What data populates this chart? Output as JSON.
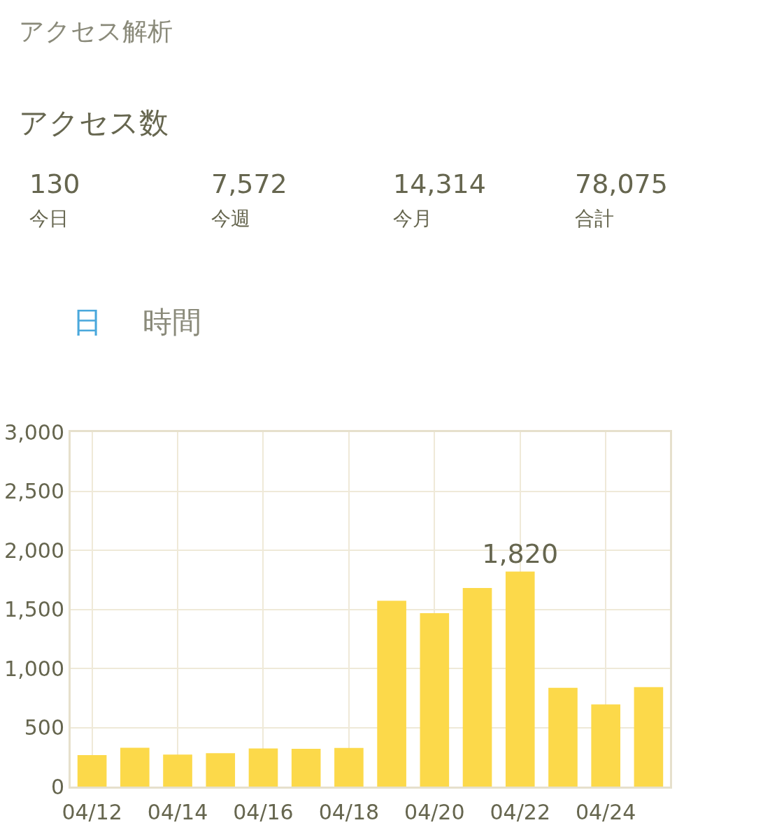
{
  "chart_data": {
    "type": "bar",
    "title": "アクセス解析",
    "subtitle": "アクセス数",
    "annotations": [
      "130",
      "今日",
      "7,572",
      "今週",
      "14,314",
      "今月",
      "78,075",
      "合計",
      "日",
      "時間"
    ],
    "categories": [
      "04/12",
      null,
      "04/14",
      null,
      "04/16",
      null,
      "04/18",
      null,
      "04/20",
      null,
      "04/22",
      null,
      "04/24",
      null
    ],
    "values": [
      267,
      329,
      271,
      282,
      322,
      320,
      327,
      1573,
      1467,
      1680,
      1820,
      836,
      696,
      842
    ],
    "value_labels": [
      null,
      null,
      null,
      null,
      null,
      null,
      null,
      null,
      null,
      null,
      "1,820",
      null,
      null,
      null
    ],
    "color": "#fcd94a",
    "ylim": [
      0,
      3000
    ],
    "yticks": [
      {
        "value": 0,
        "label": "0"
      },
      {
        "value": 500,
        "label": "500"
      },
      {
        "value": 1000,
        "label": "1,000"
      },
      {
        "value": 1500,
        "label": "1,500"
      },
      {
        "value": 2000,
        "label": "2,000"
      },
      {
        "value": 2500,
        "label": "2,500"
      },
      {
        "value": 3000,
        "label": "3,000"
      }
    ],
    "grid": true
  }
}
